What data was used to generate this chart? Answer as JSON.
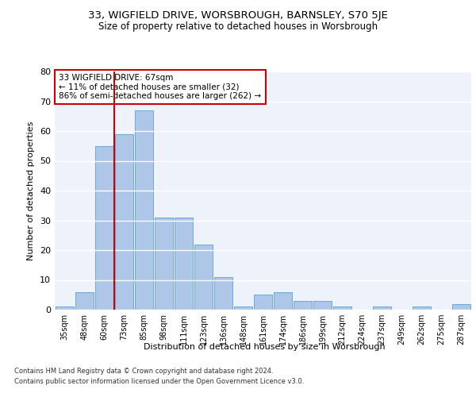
{
  "title_line1": "33, WIGFIELD DRIVE, WORSBROUGH, BARNSLEY, S70 5JE",
  "title_line2": "Size of property relative to detached houses in Worsbrough",
  "xlabel": "Distribution of detached houses by size in Worsbrough",
  "ylabel": "Number of detached properties",
  "categories": [
    "35sqm",
    "48sqm",
    "60sqm",
    "73sqm",
    "85sqm",
    "98sqm",
    "111sqm",
    "123sqm",
    "136sqm",
    "148sqm",
    "161sqm",
    "174sqm",
    "186sqm",
    "199sqm",
    "212sqm",
    "224sqm",
    "237sqm",
    "249sqm",
    "262sqm",
    "275sqm",
    "287sqm"
  ],
  "values": [
    1,
    6,
    55,
    59,
    67,
    31,
    31,
    22,
    11,
    1,
    5,
    6,
    3,
    3,
    1,
    0,
    1,
    0,
    1,
    0,
    2
  ],
  "bar_color": "#aec6e8",
  "bar_edge_color": "#6aaad4",
  "background_color": "#eef2fa",
  "grid_color": "#ffffff",
  "ref_line_color": "#cc0000",
  "annotation_text": "33 WIGFIELD DRIVE: 67sqm\n← 11% of detached houses are smaller (32)\n86% of semi-detached houses are larger (262) →",
  "annotation_box_color": "#cc0000",
  "ylim": [
    0,
    80
  ],
  "yticks": [
    0,
    10,
    20,
    30,
    40,
    50,
    60,
    70,
    80
  ],
  "footnote1": "Contains HM Land Registry data © Crown copyright and database right 2024.",
  "footnote2": "Contains public sector information licensed under the Open Government Licence v3.0."
}
